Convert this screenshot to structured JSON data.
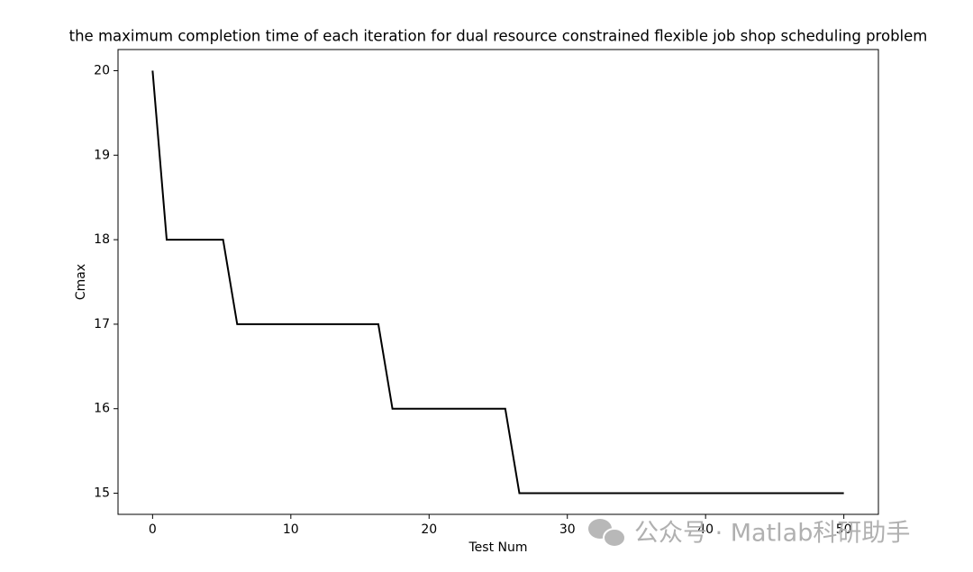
{
  "chart_data": {
    "type": "line",
    "title": "the maximum completion time of each iteration for dual resource constrained flexible job shop scheduling problem",
    "x_label": "Test Num",
    "y_label": "Cmax",
    "x": [
      0,
      1.02,
      2.04,
      3.06,
      4.08,
      5.1,
      6.12,
      7.14,
      8.16,
      9.18,
      10.2,
      11.22,
      12.24,
      13.27,
      14.29,
      15.31,
      16.33,
      17.35,
      18.37,
      19.39,
      20.41,
      21.43,
      22.45,
      23.47,
      24.49,
      25.51,
      26.53,
      27.55,
      28.57,
      29.59,
      30.61,
      31.63,
      32.65,
      33.67,
      34.69,
      35.71,
      36.73,
      37.76,
      38.78,
      39.8,
      40.82,
      41.84,
      42.86,
      43.88,
      44.9,
      45.92,
      46.94,
      47.96,
      48.98,
      50
    ],
    "series": [
      {
        "color": "#000000",
        "values": [
          20,
          18,
          18,
          18,
          18,
          18,
          17,
          17,
          17,
          17,
          17,
          17,
          17,
          17,
          17,
          17,
          17,
          16,
          16,
          16,
          16,
          16,
          16,
          16,
          16,
          16,
          15,
          15,
          15,
          15,
          15,
          15,
          15,
          15,
          15,
          15,
          15,
          15,
          15,
          15,
          15,
          15,
          15,
          15,
          15,
          15,
          15,
          15,
          15,
          15
        ]
      }
    ],
    "xlim": [
      -2.5,
      52.5
    ],
    "ylim": [
      14.75,
      20.25
    ],
    "xticks": [
      0,
      10,
      20,
      30,
      40,
      50
    ],
    "yticks": [
      15,
      16,
      17,
      18,
      19,
      20
    ],
    "grid": false,
    "watermark": "公众号 · Matlab科研助手"
  }
}
